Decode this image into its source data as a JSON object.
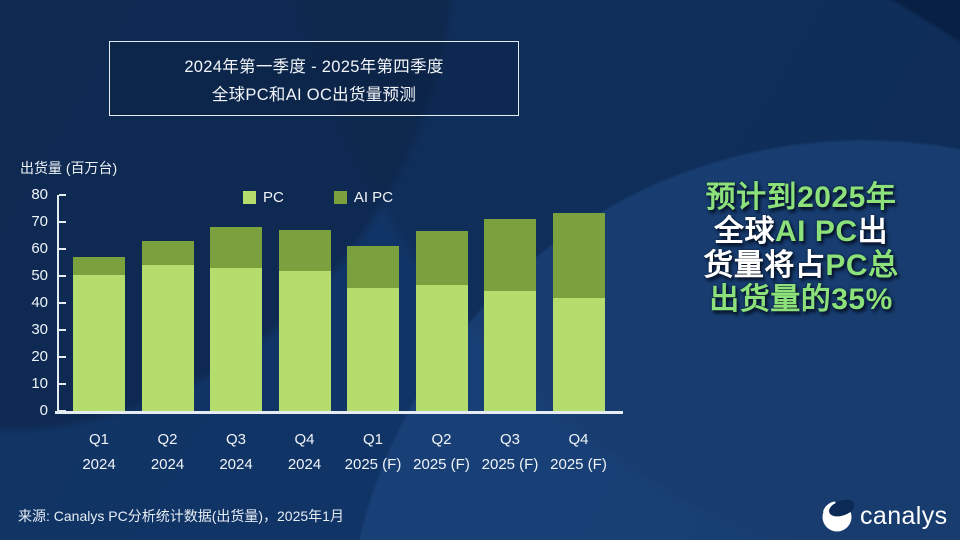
{
  "title": {
    "line1": "2024年第一季度 - 2025年第四季度",
    "line2": "全球PC和AI OC出货量预测"
  },
  "chart_data": {
    "type": "bar",
    "stacked": true,
    "title": "2024年第一季度 - 2025年第四季度 全球PC和AI OC出货量预测",
    "ylabel": "出货量 (百万台)",
    "xlabel": "",
    "ylim": [
      0,
      80
    ],
    "yticks": [
      0,
      10,
      20,
      30,
      40,
      50,
      60,
      70,
      80
    ],
    "grid": false,
    "legend_position": "top-inside",
    "categories": [
      "Q1 2024",
      "Q2 2024",
      "Q3 2024",
      "Q4 2024",
      "Q1 2025 (F)",
      "Q2 2025 (F)",
      "Q3 2025 (F)",
      "Q4 2025 (F)"
    ],
    "category_quarters": [
      "Q1",
      "Q2",
      "Q3",
      "Q4",
      "Q1",
      "Q2",
      "Q3",
      "Q4"
    ],
    "category_years": [
      "2024",
      "2024",
      "2024",
      "2024",
      "2025 (F)",
      "2025 (F)",
      "2025 (F)",
      "2025 (F)"
    ],
    "series": [
      {
        "name": "PC",
        "color": "#b5dd6e",
        "values": [
          50.5,
          54,
          53,
          52,
          45.5,
          46.5,
          44.5,
          42
        ]
      },
      {
        "name": "AI PC",
        "color": "#7aa13e",
        "values": [
          6.5,
          9,
          15,
          15,
          15.5,
          20,
          26.5,
          31.5
        ]
      }
    ],
    "totals": [
      57,
      63,
      68,
      67,
      61,
      66.5,
      71,
      73.5
    ]
  },
  "headline": {
    "lines": [
      [
        {
          "text": "预计到2025年",
          "color": "green"
        }
      ],
      [
        {
          "text": "全球",
          "color": "white"
        },
        {
          "text": "AI PC",
          "color": "green"
        },
        {
          "text": "出",
          "color": "white"
        }
      ],
      [
        {
          "text": "货量将占",
          "color": "white"
        },
        {
          "text": "PC总",
          "color": "green"
        }
      ],
      [
        {
          "text": "出货量的35%",
          "color": "green"
        }
      ]
    ]
  },
  "source": "来源: Canalys PC分析统计数据(出货量)，2025年1月",
  "logo": {
    "text": "canalys"
  },
  "colors": {
    "background": "#0b2a55",
    "accent_green": "#8ce17a",
    "bar_pc": "#b5dd6e",
    "bar_ai_pc": "#7aa13e",
    "text_white": "#ffffff",
    "axis": "#e6ecf3"
  }
}
